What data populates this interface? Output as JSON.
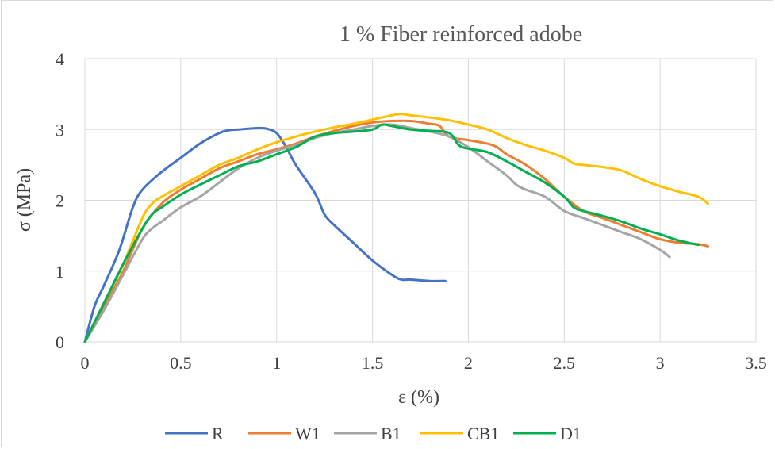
{
  "chart_data": {
    "type": "line",
    "title": "1 % Fiber reinforced adobe",
    "xlabel": "ε (%)",
    "ylabel": "σ  (MPa)",
    "xlim": [
      0,
      3.5
    ],
    "ylim": [
      0,
      4
    ],
    "xticks": [
      "0",
      "0.5",
      "1",
      "1.5",
      "2",
      "2.5",
      "3",
      "3.5"
    ],
    "yticks": [
      "0",
      "1",
      "2",
      "3",
      "4"
    ],
    "grid": "vertical and horizontal major gridlines",
    "legend": "bottom",
    "series": [
      {
        "name": "R",
        "color": "#4472C4",
        "x": [
          0,
          0.05,
          0.1,
          0.18,
          0.25,
          0.3,
          0.4,
          0.5,
          0.6,
          0.7,
          0.75,
          0.8,
          0.9,
          0.95,
          1.0,
          1.05,
          1.1,
          1.2,
          1.25,
          1.3,
          1.4,
          1.5,
          1.6,
          1.65,
          1.7,
          1.8,
          1.88
        ],
        "y": [
          0,
          0.5,
          0.8,
          1.3,
          1.9,
          2.15,
          2.4,
          2.6,
          2.8,
          2.95,
          2.99,
          3.0,
          3.02,
          3.01,
          2.95,
          2.75,
          2.5,
          2.1,
          1.8,
          1.65,
          1.4,
          1.15,
          0.95,
          0.88,
          0.88,
          0.86,
          0.86
        ]
      },
      {
        "name": "W1",
        "color": "#ED7D31",
        "x": [
          0,
          0.1,
          0.2,
          0.3,
          0.4,
          0.5,
          0.6,
          0.7,
          0.8,
          0.9,
          1.0,
          1.1,
          1.2,
          1.3,
          1.4,
          1.5,
          1.6,
          1.7,
          1.8,
          1.85,
          1.9,
          2.0,
          2.1,
          2.15,
          2.2,
          2.3,
          2.4,
          2.5,
          2.6,
          2.7,
          2.8,
          2.9,
          3.0,
          3.1,
          3.2,
          3.25
        ],
        "y": [
          0,
          0.5,
          1.0,
          1.6,
          1.95,
          2.15,
          2.3,
          2.45,
          2.55,
          2.65,
          2.72,
          2.8,
          2.9,
          2.98,
          3.05,
          3.1,
          3.12,
          3.12,
          3.08,
          3.05,
          2.9,
          2.85,
          2.8,
          2.75,
          2.65,
          2.5,
          2.3,
          2.05,
          1.85,
          1.75,
          1.65,
          1.55,
          1.45,
          1.4,
          1.38,
          1.35
        ]
      },
      {
        "name": "B1",
        "color": "#A5A5A5",
        "x": [
          0,
          0.1,
          0.2,
          0.3,
          0.35,
          0.4,
          0.5,
          0.6,
          0.7,
          0.8,
          0.9,
          1.0,
          1.1,
          1.2,
          1.3,
          1.4,
          1.5,
          1.6,
          1.7,
          1.8,
          1.9,
          2.0,
          2.1,
          2.2,
          2.25,
          2.3,
          2.4,
          2.5,
          2.6,
          2.7,
          2.8,
          2.9,
          3.0,
          3.05
        ],
        "y": [
          0,
          0.45,
          0.95,
          1.45,
          1.6,
          1.7,
          1.9,
          2.05,
          2.25,
          2.45,
          2.6,
          2.7,
          2.78,
          2.88,
          2.95,
          3.0,
          3.05,
          3.07,
          3.02,
          2.97,
          2.9,
          2.75,
          2.55,
          2.35,
          2.22,
          2.15,
          2.05,
          1.85,
          1.75,
          1.65,
          1.55,
          1.45,
          1.3,
          1.2
        ]
      },
      {
        "name": "CB1",
        "color": "#FFC000",
        "x": [
          0,
          0.1,
          0.2,
          0.3,
          0.35,
          0.4,
          0.5,
          0.6,
          0.7,
          0.8,
          0.9,
          1.0,
          1.1,
          1.2,
          1.3,
          1.4,
          1.5,
          1.6,
          1.65,
          1.7,
          1.8,
          1.9,
          2.0,
          2.1,
          2.2,
          2.3,
          2.4,
          2.5,
          2.55,
          2.6,
          2.7,
          2.8,
          2.9,
          3.0,
          3.1,
          3.2,
          3.25
        ],
        "y": [
          0,
          0.55,
          1.1,
          1.75,
          1.95,
          2.05,
          2.2,
          2.35,
          2.5,
          2.6,
          2.72,
          2.82,
          2.9,
          2.97,
          3.03,
          3.08,
          3.14,
          3.2,
          3.22,
          3.2,
          3.17,
          3.13,
          3.07,
          3.0,
          2.88,
          2.78,
          2.7,
          2.6,
          2.52,
          2.5,
          2.47,
          2.42,
          2.3,
          2.2,
          2.12,
          2.05,
          1.95
        ]
      },
      {
        "name": "D1",
        "color": "#00B050",
        "x": [
          0,
          0.1,
          0.2,
          0.3,
          0.35,
          0.4,
          0.5,
          0.6,
          0.7,
          0.8,
          0.9,
          1.0,
          1.1,
          1.2,
          1.3,
          1.4,
          1.5,
          1.55,
          1.6,
          1.7,
          1.8,
          1.9,
          1.95,
          2.0,
          2.1,
          2.2,
          2.3,
          2.4,
          2.5,
          2.55,
          2.6,
          2.7,
          2.8,
          2.9,
          3.0,
          3.1,
          3.2
        ],
        "y": [
          0,
          0.55,
          1.1,
          1.6,
          1.8,
          1.9,
          2.08,
          2.22,
          2.35,
          2.48,
          2.55,
          2.65,
          2.75,
          2.9,
          2.95,
          2.97,
          3.0,
          3.07,
          3.05,
          3.0,
          2.98,
          2.95,
          2.78,
          2.73,
          2.68,
          2.55,
          2.4,
          2.25,
          2.05,
          1.9,
          1.85,
          1.78,
          1.7,
          1.6,
          1.52,
          1.43,
          1.37
        ]
      }
    ]
  }
}
